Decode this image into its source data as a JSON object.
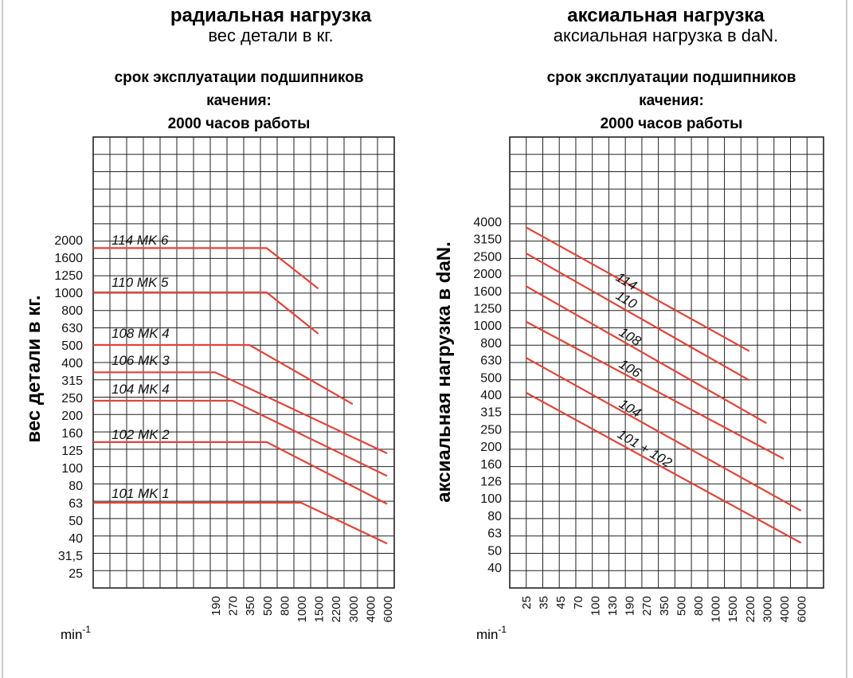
{
  "colors": {
    "grid": "#222222",
    "line": "#e0443a",
    "text": "#111111"
  },
  "chart_data": [
    {
      "type": "line",
      "title": "радиальная нагрузка",
      "subtitle": "вес детали в кг.",
      "subtitle2_lines": [
        "срок эксплуатации подшипников",
        "качения:",
        "2000 часов работы"
      ],
      "ylabel": "вес детали в кг.",
      "xunit": "min",
      "xunit_sup": "-1",
      "y_ticks": [
        "2000",
        "1600",
        "1250",
        "1000",
        "800",
        "630",
        "500",
        "400",
        "315",
        "250",
        "200",
        "160",
        "125",
        "100",
        "80",
        "63",
        "50",
        "40",
        "31,5",
        "25"
      ],
      "x_ticks": [
        "190",
        "270",
        "350",
        "500",
        "800",
        "1000",
        "1500",
        "2200",
        "3000",
        "4000",
        "6000"
      ],
      "series": [
        {
          "name": "114 MK 6",
          "points": [
            [
              "",
              "1800"
            ],
            [
              "500",
              "1800"
            ],
            [
              "1500",
              "1050"
            ]
          ]
        },
        {
          "name": "110 MK 5",
          "points": [
            [
              "",
              "1000"
            ],
            [
              "500",
              "1000"
            ],
            [
              "1500",
              "580"
            ]
          ]
        },
        {
          "name": "108 MK 4",
          "points": [
            [
              "",
              "500"
            ],
            [
              "350",
              "500"
            ],
            [
              "3000",
              "230"
            ]
          ]
        },
        {
          "name": "106 MK 3",
          "points": [
            [
              "",
              "350"
            ],
            [
              "190",
              "350"
            ],
            [
              "6000",
              "120"
            ]
          ]
        },
        {
          "name": "104 MK 4",
          "points": [
            [
              "",
              "240"
            ],
            [
              "270",
              "240"
            ],
            [
              "6000",
              "90"
            ]
          ]
        },
        {
          "name": "102 MK 2",
          "points": [
            [
              "",
              "140"
            ],
            [
              "500",
              "140"
            ],
            [
              "6000",
              "62"
            ]
          ]
        },
        {
          "name": "101 MK 1",
          "points": [
            [
              "",
              "63"
            ],
            [
              "1000",
              "63"
            ],
            [
              "6000",
              "37"
            ]
          ]
        }
      ]
    },
    {
      "type": "line",
      "title": "аксиальная нагрузка",
      "subtitle": "аксиальная нагрузка в daN.",
      "subtitle2_lines": [
        "срок эксплуатации подшипников",
        "качения:",
        "2000 часов работы"
      ],
      "ylabel": "аксиальная нагрузка в daN.",
      "xunit": "min",
      "xunit_sup": "-1",
      "y_ticks": [
        "4000",
        "3150",
        "2500",
        "2000",
        "1600",
        "1250",
        "1000",
        "800",
        "630",
        "500",
        "400",
        "315",
        "250",
        "200",
        "160",
        "126",
        "100",
        "80",
        "63",
        "50",
        "40"
      ],
      "x_ticks": [
        "25",
        "35",
        "45",
        "70",
        "100",
        "130",
        "190",
        "270",
        "350",
        "500",
        "800",
        "1000",
        "1500",
        "2200",
        "3000",
        "4000",
        "6000"
      ],
      "series": [
        {
          "name": "114",
          "points": [
            [
              "25",
              "3700"
            ],
            [
              "2200",
              "710"
            ]
          ]
        },
        {
          "name": "110",
          "points": [
            [
              "25",
              "2600"
            ],
            [
              "2200",
              "480"
            ]
          ]
        },
        {
          "name": "108",
          "points": [
            [
              "25",
              "1700"
            ],
            [
              "3000",
              "270"
            ]
          ]
        },
        {
          "name": "106",
          "points": [
            [
              "25",
              "1050"
            ],
            [
              "4000",
              "170"
            ]
          ]
        },
        {
          "name": "104",
          "points": [
            [
              "25",
              "650"
            ],
            [
              "6000",
              "85"
            ]
          ]
        },
        {
          "name": "101 + 102",
          "points": [
            [
              "25",
              "410"
            ],
            [
              "6000",
              "55"
            ]
          ]
        }
      ]
    }
  ]
}
